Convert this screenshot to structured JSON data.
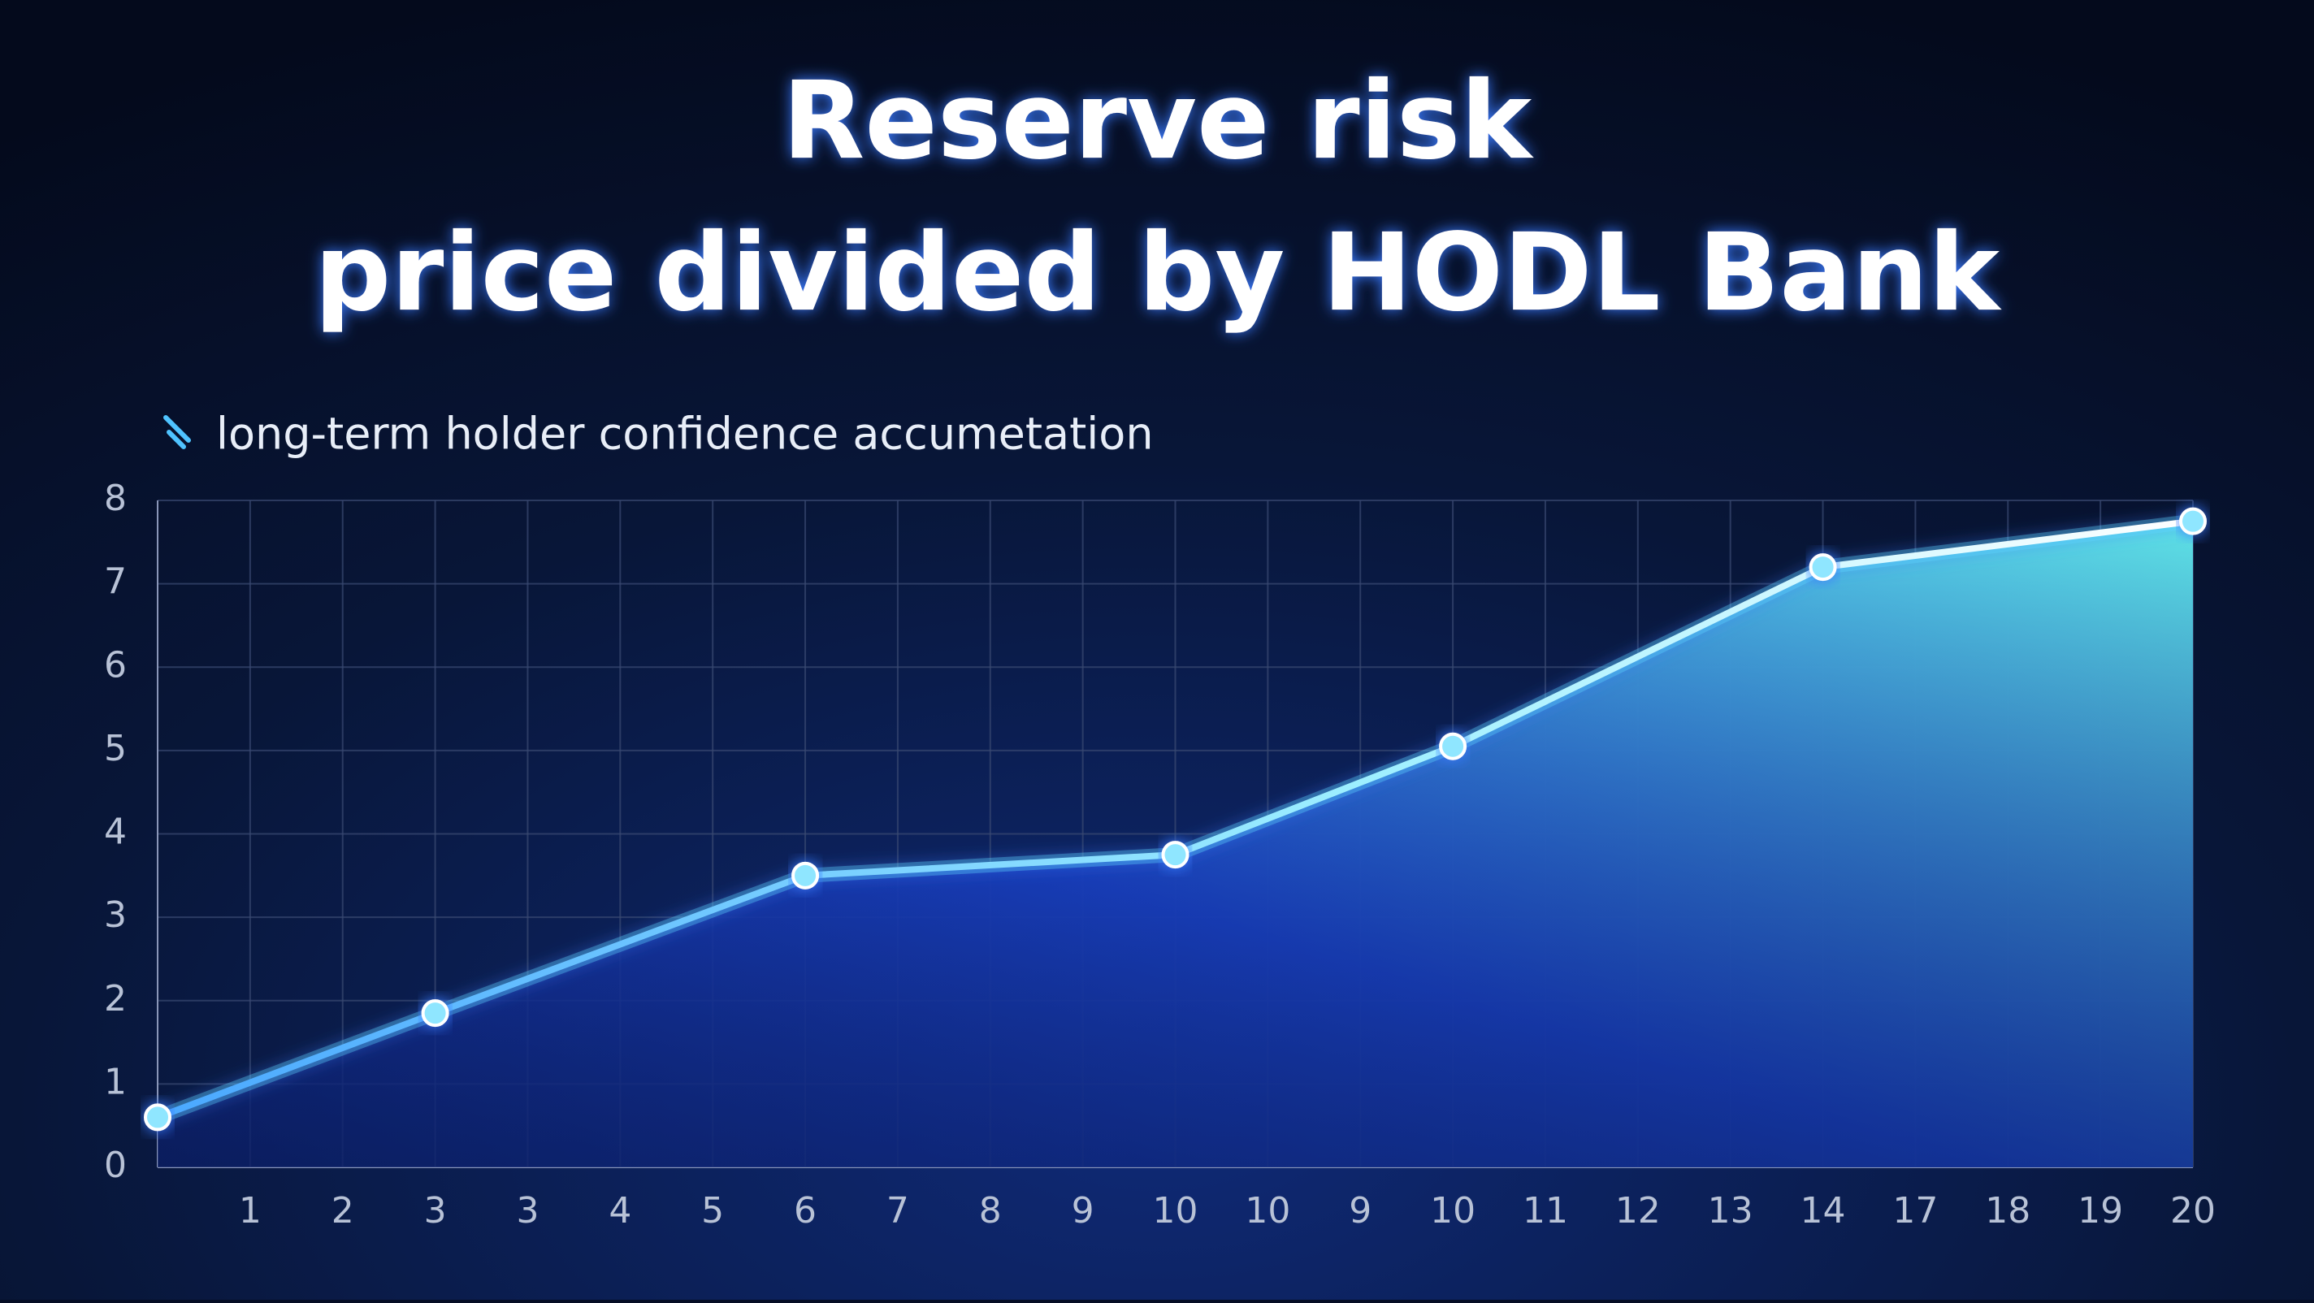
{
  "chart_data": {
    "type": "line",
    "title": "Reserve risk",
    "subtitle": "price divided by HODL Bank",
    "legend_label": "long-term holder confidence accumetation",
    "categories": [
      null,
      "1",
      "2",
      "3",
      "3",
      "4",
      "5",
      "6",
      "7",
      "8",
      "9",
      "10",
      "10",
      "9",
      "10",
      "11",
      "12",
      "13",
      "14",
      "17",
      "18",
      "19",
      "20"
    ],
    "series": [
      {
        "name": "long-term holder confidence accumetation",
        "color": "#5fd0ff",
        "values": [
          0.6,
          null,
          null,
          1.85,
          null,
          null,
          null,
          3.5,
          null,
          null,
          null,
          3.75,
          null,
          null,
          5.05,
          null,
          null,
          null,
          7.2,
          null,
          null,
          null,
          7.75
        ]
      }
    ],
    "ylim": [
      0,
      8
    ],
    "yticks": [
      0,
      1,
      2,
      3,
      4,
      5,
      6,
      7,
      8
    ],
    "grid": true
  }
}
